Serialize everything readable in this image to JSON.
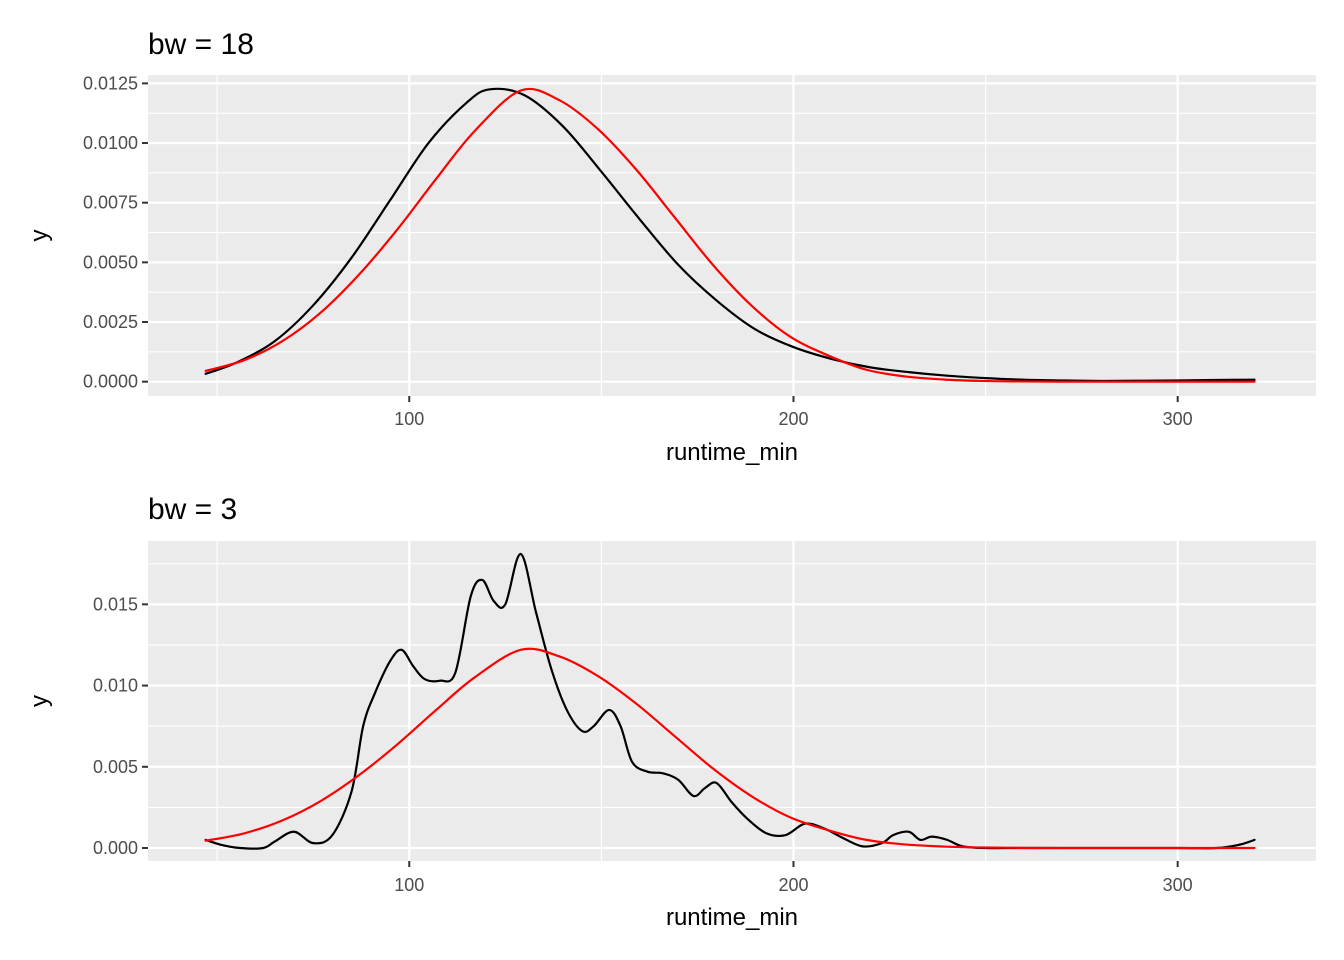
{
  "chart_data": [
    {
      "type": "line",
      "title": "bw = 18",
      "xlabel": "runtime_min",
      "ylabel": "y",
      "xlim": [
        32,
        336
      ],
      "ylim": [
        -0.0006,
        0.01285
      ],
      "x_ticks": [
        100,
        200,
        300
      ],
      "y_ticks": [
        0.0,
        0.0025,
        0.005,
        0.0075,
        0.01,
        0.0125
      ],
      "y_tick_labels": [
        "0.0000",
        "0.0025",
        "0.0050",
        "0.0075",
        "0.0100",
        "0.0125"
      ],
      "grid": true,
      "series": [
        {
          "color": "#000000",
          "x": [
            47,
            55,
            65,
            75,
            85,
            95,
            105,
            115,
            121,
            130,
            140,
            150,
            160,
            170,
            180,
            190,
            200,
            210,
            220,
            230,
            240,
            250,
            260,
            270,
            280,
            290,
            300,
            310,
            320
          ],
          "y": [
            0.00033,
            0.0008,
            0.0017,
            0.0032,
            0.0052,
            0.0076,
            0.01,
            0.0117,
            0.01225,
            0.012,
            0.0107,
            0.0088,
            0.0068,
            0.0049,
            0.0034,
            0.0022,
            0.00145,
            0.00095,
            0.0006,
            0.0004,
            0.00025,
            0.00015,
            8e-05,
            5e-05,
            3e-05,
            4e-05,
            5e-05,
            7e-05,
            8e-05
          ]
        },
        {
          "color": "#ff0000",
          "x": [
            47,
            57,
            67,
            77,
            87,
            97,
            107,
            117,
            129,
            139,
            149,
            159,
            169,
            179,
            189,
            199,
            209,
            219,
            229,
            239,
            249,
            259,
            269,
            279,
            289,
            299,
            309,
            320
          ],
          "y": [
            0.00045,
            0.0009,
            0.0017,
            0.0029,
            0.0045,
            0.0064,
            0.0085,
            0.0105,
            0.0122,
            0.0118,
            0.0106,
            0.0089,
            0.0069,
            0.0049,
            0.0032,
            0.0019,
            0.0011,
            0.0005,
            0.00022,
            9e-05,
            3e-05,
            1e-05,
            0.0,
            0.0,
            0.0,
            0.0,
            0.0,
            0.0
          ]
        }
      ]
    },
    {
      "type": "line",
      "title": "bw = 3",
      "xlabel": "runtime_min",
      "ylabel": "y",
      "xlim": [
        32,
        336
      ],
      "ylim": [
        -0.0008,
        0.0189
      ],
      "x_ticks": [
        100,
        200,
        300
      ],
      "y_ticks": [
        0.0,
        0.005,
        0.01,
        0.015
      ],
      "y_tick_labels": [
        "0.000",
        "0.005",
        "0.010",
        "0.015"
      ],
      "grid": true,
      "series": [
        {
          "color": "#000000",
          "x": [
            47,
            51,
            56,
            62,
            65,
            70,
            75,
            80,
            85,
            88,
            91,
            95,
            98,
            101,
            104,
            108,
            112,
            116,
            119,
            122,
            125,
            129,
            133,
            137,
            141,
            145,
            148,
            152,
            155,
            158,
            162,
            166,
            170,
            174,
            177,
            180,
            184,
            188,
            193,
            198,
            203,
            208,
            213,
            218,
            223,
            226,
            230,
            233,
            236,
            240,
            244,
            250,
            260,
            280,
            300,
            310,
            316,
            320
          ],
          "y": [
            0.0005,
            0.0002,
            0.0,
            0.0,
            0.0004,
            0.001,
            0.0003,
            0.0008,
            0.0035,
            0.0075,
            0.0095,
            0.0115,
            0.0122,
            0.0112,
            0.0104,
            0.0103,
            0.0108,
            0.0155,
            0.0165,
            0.0152,
            0.015,
            0.0181,
            0.0145,
            0.011,
            0.0085,
            0.0072,
            0.0075,
            0.0085,
            0.0075,
            0.0053,
            0.0047,
            0.0046,
            0.0042,
            0.0032,
            0.0037,
            0.004,
            0.0028,
            0.0018,
            0.0009,
            0.0008,
            0.0015,
            0.0012,
            0.0006,
            0.0001,
            0.0003,
            0.0008,
            0.001,
            0.0005,
            0.0007,
            0.0005,
            0.0001,
            0.0,
            0.0,
            0.0,
            0.0,
            0.0,
            0.0002,
            0.0005
          ]
        },
        {
          "color": "#ff0000",
          "x": [
            47,
            57,
            67,
            77,
            87,
            97,
            107,
            117,
            129,
            139,
            149,
            159,
            169,
            179,
            189,
            199,
            209,
            219,
            229,
            239,
            249,
            259,
            269,
            279,
            289,
            299,
            309,
            320
          ],
          "y": [
            0.00045,
            0.0009,
            0.0017,
            0.0029,
            0.0045,
            0.0064,
            0.0085,
            0.0105,
            0.0122,
            0.0118,
            0.0106,
            0.0089,
            0.0069,
            0.0049,
            0.0032,
            0.0019,
            0.0011,
            0.0005,
            0.00022,
            9e-05,
            3e-05,
            1e-05,
            0.0,
            0.0,
            0.0,
            0.0,
            0.0,
            0.0
          ]
        }
      ]
    }
  ]
}
